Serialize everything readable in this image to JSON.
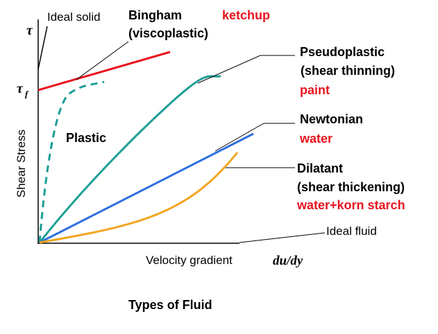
{
  "diagram": {
    "title": "Types of Fluid",
    "y_axis": {
      "label": "Shear Stress",
      "symbol": "τ",
      "yield": {
        "symbol": "τ",
        "subscript": "f"
      }
    },
    "x_axis": {
      "label": "Velocity gradient",
      "symbol": "du/dy"
    },
    "curves": [
      {
        "name": "Ideal solid"
      },
      {
        "name": "Bingham",
        "detail": "(viscoplastic)",
        "example": "ketchup"
      },
      {
        "name": "Plastic"
      },
      {
        "name": "Pseudoplastic",
        "detail": " (shear thinning)",
        "example": "paint"
      },
      {
        "name": "Newtonian",
        "example": "water"
      },
      {
        "name": "Dilatant",
        "detail": "(shear thickening)",
        "example": "water+korn starch"
      },
      {
        "name": "Ideal fluid"
      }
    ]
  }
}
